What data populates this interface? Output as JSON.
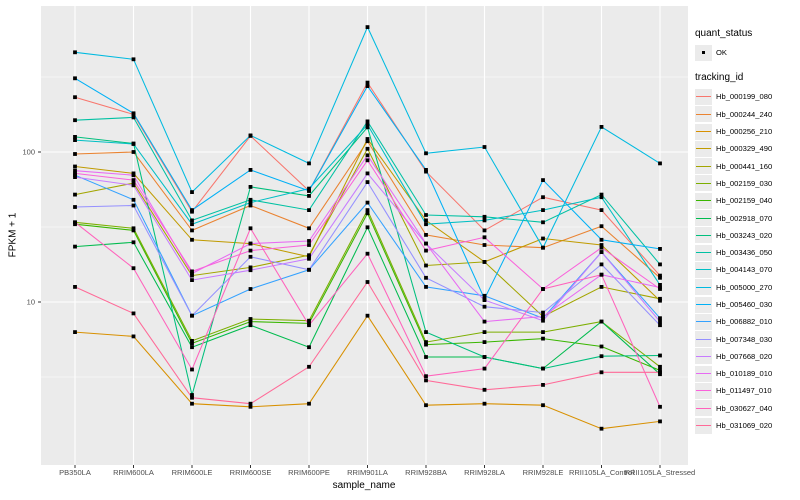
{
  "chart_data": {
    "type": "line",
    "title": "",
    "xlabel": "sample_name",
    "ylabel": "FPKM + 1",
    "y_scale": "log10",
    "y_tick_labels": [
      "100",
      "10"
    ],
    "y_tick_values": [
      100,
      10
    ],
    "y_minor_values": [
      3.162,
      31.62,
      316.2
    ],
    "ylim": [
      0.85,
      950
    ],
    "grid": "white major/minor gridlines on grey panel",
    "legend_position": "right",
    "marker": "black square",
    "categories": [
      "PB350LA",
      "RRIM600LA",
      "RRIM600LE",
      "RRIM600SE",
      "RRIM600PE",
      "RRIM901LA",
      "RRIM928BA",
      "RRIM928LA",
      "RRIM928LE",
      "RRII105LA_Control",
      "RRII105LA_Stressed"
    ],
    "series": [
      {
        "name": "Hb_000199_080",
        "color": "#F8766D",
        "values": [
          232,
          178,
          40,
          128,
          55,
          290,
          74,
          30,
          50,
          41,
          15
        ]
      },
      {
        "name": "Hb_000244_240",
        "color": "#EA8331",
        "values": [
          97,
          100,
          30,
          44,
          31,
          118,
          28,
          24,
          23,
          32,
          14.5
        ]
      },
      {
        "name": "Hb_000256_210",
        "color": "#D89000",
        "values": [
          6.3,
          5.9,
          2.1,
          2.0,
          2.1,
          8.1,
          2.05,
          2.1,
          2.05,
          1.43,
          1.6
        ]
      },
      {
        "name": "Hb_000329_490",
        "color": "#C09B00",
        "values": [
          80,
          72,
          26,
          24.5,
          20,
          122,
          35,
          18.5,
          26.5,
          24,
          10.2
        ]
      },
      {
        "name": "Hb_000441_160",
        "color": "#A3A500",
        "values": [
          52,
          62,
          15,
          17,
          20.5,
          105,
          17.5,
          18.5,
          8.0,
          12.6,
          10.5
        ]
      },
      {
        "name": "Hb_002159_030",
        "color": "#7CAE00",
        "values": [
          34,
          31,
          5.5,
          7.7,
          7.5,
          41,
          5.4,
          6.3,
          6.3,
          7.4,
          3.7
        ]
      },
      {
        "name": "Hb_002159_040",
        "color": "#39B600",
        "values": [
          33,
          30,
          5.3,
          7.4,
          7.2,
          39,
          5.2,
          5.4,
          5.7,
          5.05,
          3.5
        ]
      },
      {
        "name": "Hb_002918_070",
        "color": "#00BB4E",
        "values": [
          23.4,
          25,
          5.0,
          7.0,
          5.0,
          31.5,
          4.3,
          4.3,
          3.6,
          7.4,
          3.3
        ]
      },
      {
        "name": "Hb_003243_020",
        "color": "#00BF7D",
        "values": [
          126,
          114,
          2.4,
          58.5,
          51,
          146,
          6.3,
          4.3,
          3.6,
          4.35,
          4.4
        ]
      },
      {
        "name": "Hb_003436_050",
        "color": "#00C1A3",
        "values": [
          163,
          170,
          35,
          48,
          41,
          160,
          38,
          37,
          34,
          52,
          17.8
        ]
      },
      {
        "name": "Hb_004143_070",
        "color": "#00BFC4",
        "values": [
          120,
          113,
          33,
          46,
          57,
          152,
          33,
          35,
          41,
          50,
          13
        ]
      },
      {
        "name": "Hb_005000_270",
        "color": "#00BAE0",
        "values": [
          462,
          415,
          54,
          129,
          84,
          680,
          98,
          108,
          23,
          147,
          84
        ]
      },
      {
        "name": "Hb_005460_030",
        "color": "#00B0F6",
        "values": [
          310,
          181,
          41,
          76,
          55,
          275,
          76,
          10.5,
          65,
          26,
          22.6
        ]
      },
      {
        "name": "Hb_006882_010",
        "color": "#35A2FF",
        "values": [
          70,
          48,
          8.1,
          12.2,
          16.4,
          46,
          12.6,
          11,
          7.8,
          21.5,
          7.8
        ]
      },
      {
        "name": "Hb_007348_030",
        "color": "#9590FF",
        "values": [
          43,
          44,
          8.1,
          20,
          16.4,
          63,
          14.5,
          9.3,
          8.5,
          17.8,
          7.0
        ]
      },
      {
        "name": "Hb_007668_020",
        "color": "#C77CFF",
        "values": [
          68,
          60,
          14,
          16.3,
          19.4,
          72,
          24.5,
          10.3,
          7.5,
          21.5,
          7.4
        ]
      },
      {
        "name": "Hb_010189_010",
        "color": "#E76BF3",
        "values": [
          75,
          70,
          15.5,
          24.5,
          25.5,
          95,
          24.5,
          7.4,
          8.0,
          15.2,
          12.5
        ]
      },
      {
        "name": "Hb_011497_010",
        "color": "#FA62DB",
        "values": [
          72,
          65,
          16,
          22,
          24,
          88,
          22,
          27,
          12.2,
          23,
          12.2
        ]
      },
      {
        "name": "Hb_030627_040",
        "color": "#FF62BC",
        "values": [
          34,
          16.8,
          3.55,
          31,
          7.0,
          21,
          3.2,
          3.6,
          12.2,
          15.2,
          2.0
        ]
      },
      {
        "name": "Hb_031069_020",
        "color": "#FF6A98",
        "values": [
          12.6,
          8.4,
          2.3,
          2.1,
          3.7,
          13.6,
          3.0,
          2.6,
          2.8,
          3.4,
          3.4
        ]
      }
    ]
  },
  "legend": {
    "quant_status_title": "quant_status",
    "quant_status_items": [
      {
        "label": "OK",
        "marker": "black-square-point"
      }
    ],
    "tracking_id_title": "tracking_id"
  },
  "style_tokens": {
    "panel_bg": "#EBEBEB",
    "grid_major": "#FFFFFF",
    "grid_minor": "#F7F7F7",
    "point_color": "#000000",
    "tick_label_color": "#4D4D4D",
    "legend_key_bg": "#EBEBEB"
  }
}
